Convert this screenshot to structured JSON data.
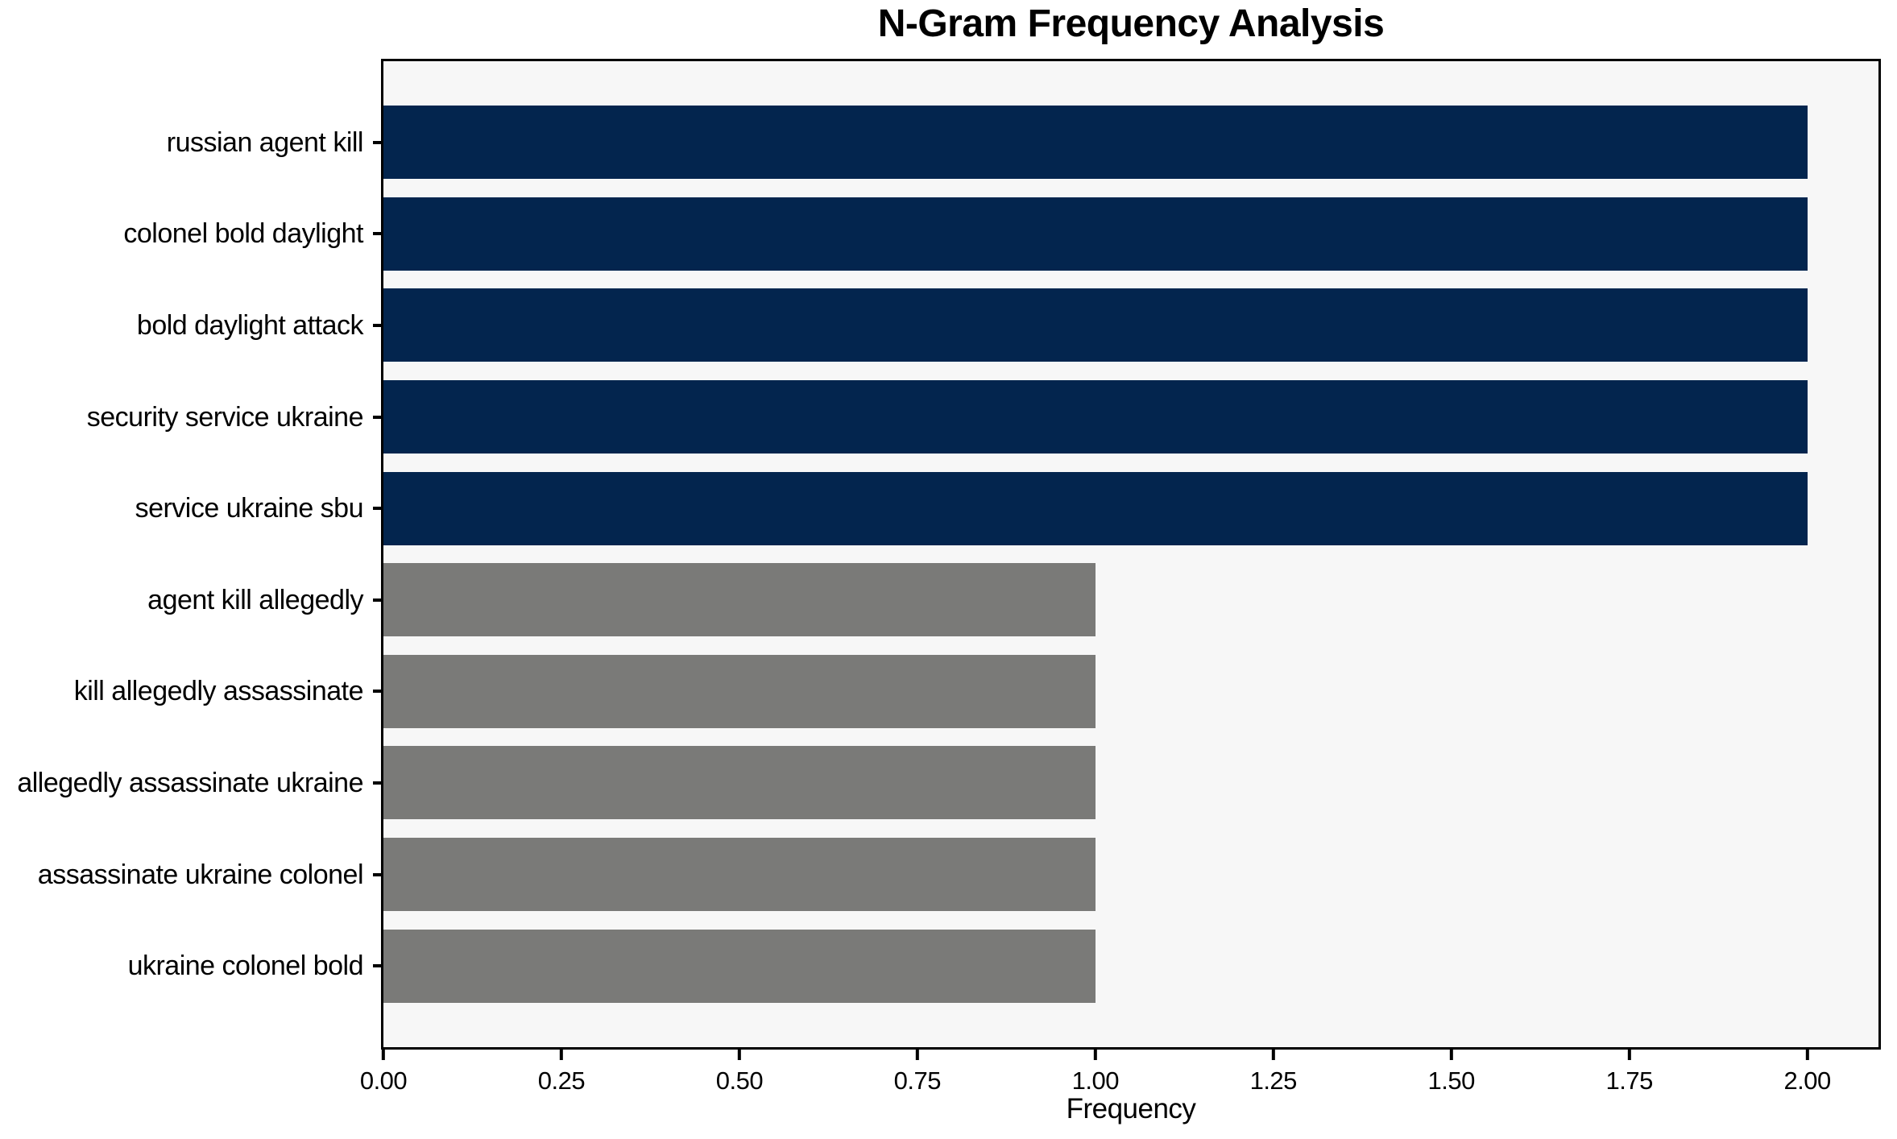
{
  "chart_data": {
    "type": "bar",
    "orientation": "horizontal",
    "title": "N-Gram Frequency Analysis",
    "xlabel": "Frequency",
    "ylabel": "",
    "categories": [
      "russian agent kill",
      "colonel bold daylight",
      "bold daylight attack",
      "security service ukraine",
      "service ukraine sbu",
      "agent kill allegedly",
      "kill allegedly assassinate",
      "allegedly assassinate ukraine",
      "assassinate ukraine colonel",
      "ukraine colonel bold"
    ],
    "values": [
      2,
      2,
      2,
      2,
      2,
      1,
      1,
      1,
      1,
      1
    ],
    "bar_colors": [
      "#03254e",
      "#03254e",
      "#03254e",
      "#03254e",
      "#03254e",
      "#7a7a78",
      "#7a7a78",
      "#7a7a78",
      "#7a7a78",
      "#7a7a78"
    ],
    "xlim": [
      0,
      2.1
    ],
    "x_ticks": [
      {
        "value": 0.0,
        "label": "0.00"
      },
      {
        "value": 0.25,
        "label": "0.25"
      },
      {
        "value": 0.5,
        "label": "0.50"
      },
      {
        "value": 0.75,
        "label": "0.75"
      },
      {
        "value": 1.0,
        "label": "1.00"
      },
      {
        "value": 1.25,
        "label": "1.25"
      },
      {
        "value": 1.5,
        "label": "1.50"
      },
      {
        "value": 1.75,
        "label": "1.75"
      },
      {
        "value": 2.0,
        "label": "2.00"
      }
    ],
    "grid": false,
    "legend": null,
    "colors": {
      "bar_high": "#03254e",
      "bar_low": "#7a7a78",
      "plot_background": "#f7f7f7",
      "figure_background": "#ffffff",
      "spine": "#000000",
      "text": "#000000"
    }
  }
}
